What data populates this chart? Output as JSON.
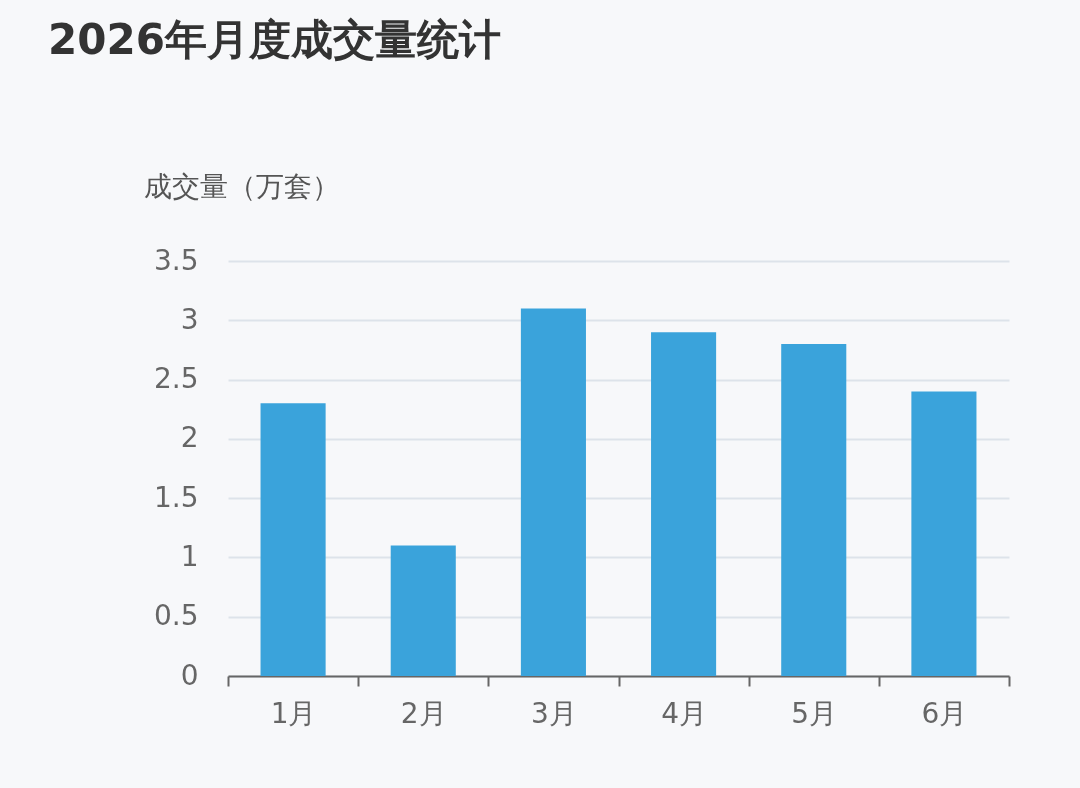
{
  "chart_data": {
    "type": "bar",
    "title": "2026年月度成交量统计",
    "ylabel": "成交量（万套）",
    "categories": [
      "1月",
      "2月",
      "3月",
      "4月",
      "5月",
      "6月"
    ],
    "values": [
      2.3,
      1.1,
      3.1,
      2.9,
      2.8,
      2.4
    ],
    "color": "#3aa3db",
    "ylim": [
      0,
      3.5
    ],
    "yticks": [
      0,
      0.5,
      1,
      1.5,
      2,
      2.5,
      3,
      3.5
    ],
    "grid": "y"
  }
}
